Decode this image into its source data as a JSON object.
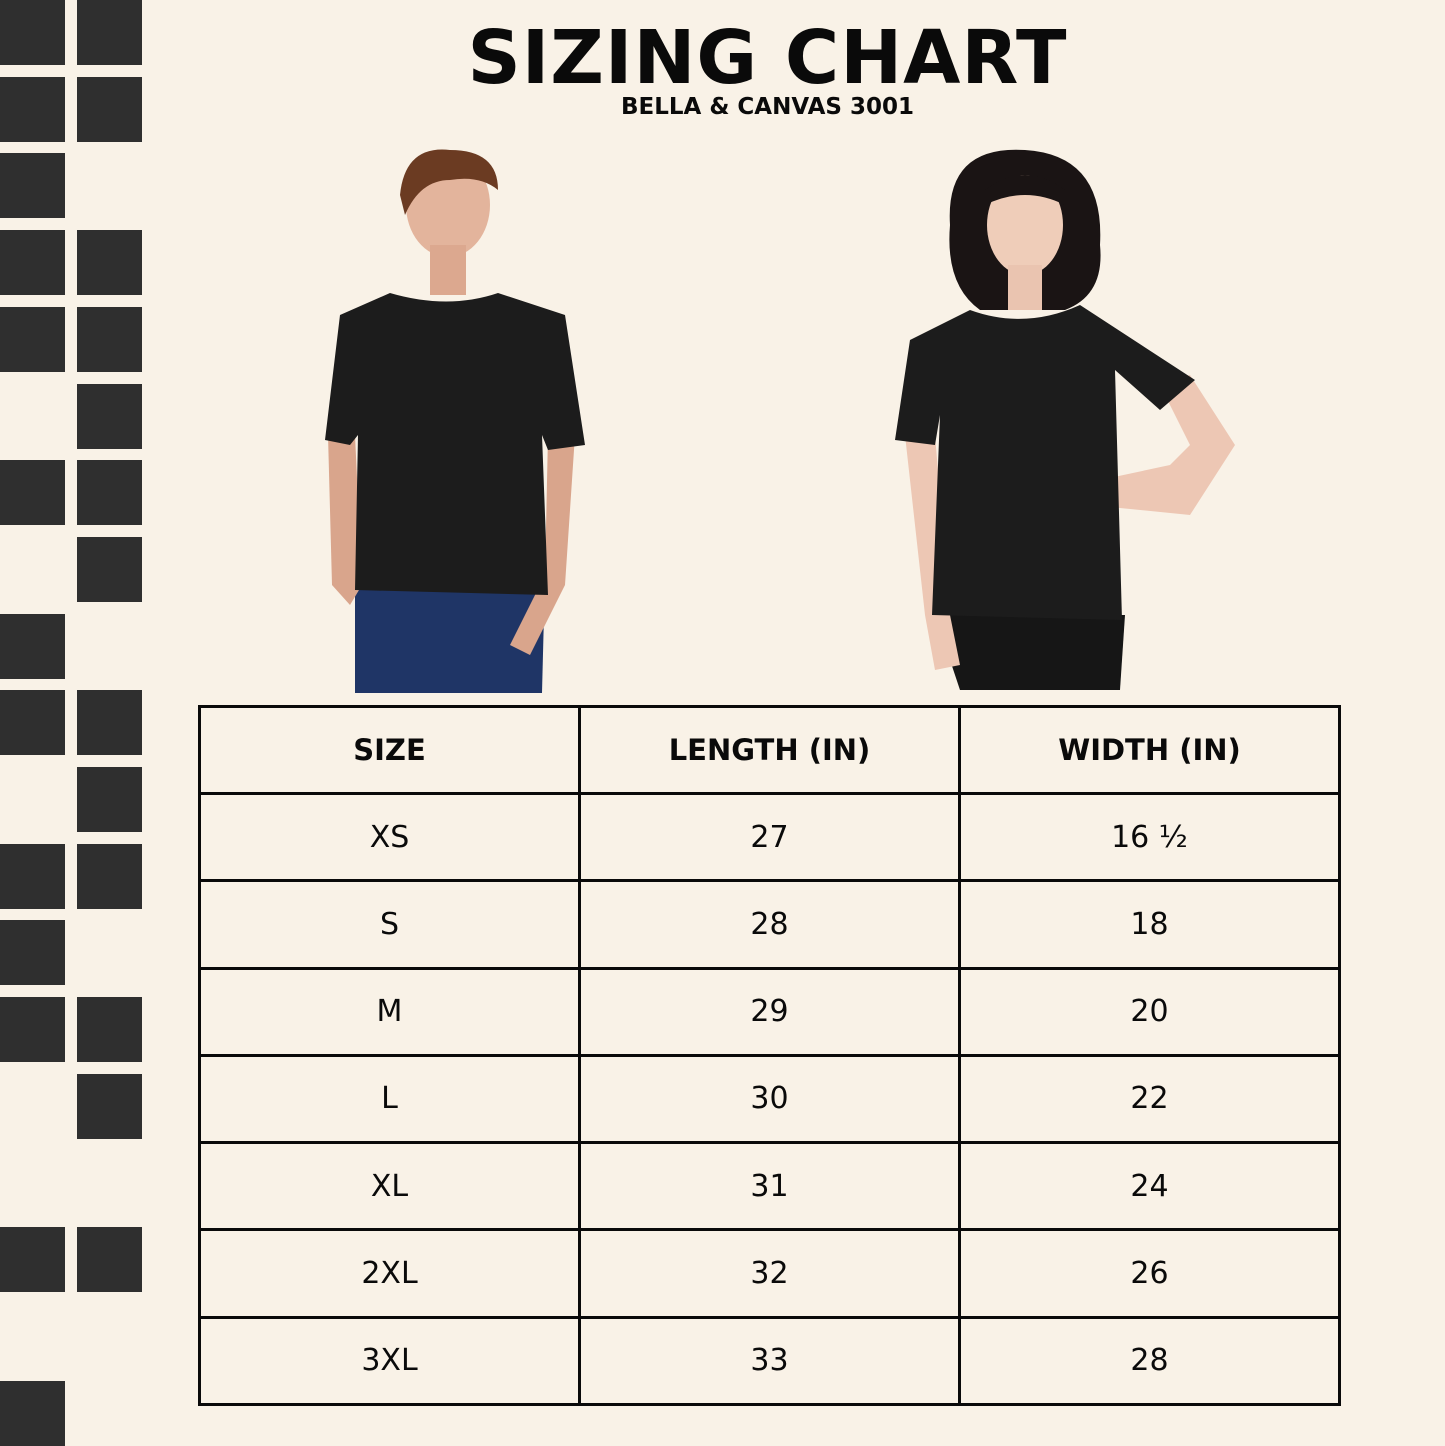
{
  "header": {
    "title": "SIZING CHART",
    "subtitle": "BELLA & CANVAS 3001"
  },
  "colors": {
    "background": "#f9f2e7",
    "squares": "#2f2f2f",
    "shirt": "#1c1c1c",
    "text": "#0a0a0a"
  },
  "decor_pattern": [
    [
      1,
      1
    ],
    [
      1,
      1
    ],
    [
      1,
      0
    ],
    [
      1,
      1
    ],
    [
      1,
      1
    ],
    [
      0,
      1
    ],
    [
      1,
      1
    ],
    [
      0,
      1
    ],
    [
      1,
      0
    ],
    [
      1,
      1
    ],
    [
      0,
      1
    ],
    [
      1,
      1
    ],
    [
      1,
      0
    ],
    [
      1,
      1
    ],
    [
      0,
      1
    ],
    [
      0,
      0
    ],
    [
      1,
      1
    ],
    [
      0,
      0
    ],
    [
      1,
      0
    ]
  ],
  "models": [
    "male-model-black-tshirt",
    "female-model-black-tshirt"
  ],
  "table": {
    "headers": [
      "SIZE",
      "LENGTH (IN)",
      "WIDTH (IN)"
    ],
    "rows": [
      [
        "XS",
        "27",
        "16 ½"
      ],
      [
        "S",
        "28",
        "18"
      ],
      [
        "M",
        "29",
        "20"
      ],
      [
        "L",
        "30",
        "22"
      ],
      [
        "XL",
        "31",
        "24"
      ],
      [
        "2XL",
        "32",
        "26"
      ],
      [
        "3XL",
        "33",
        "28"
      ]
    ]
  }
}
